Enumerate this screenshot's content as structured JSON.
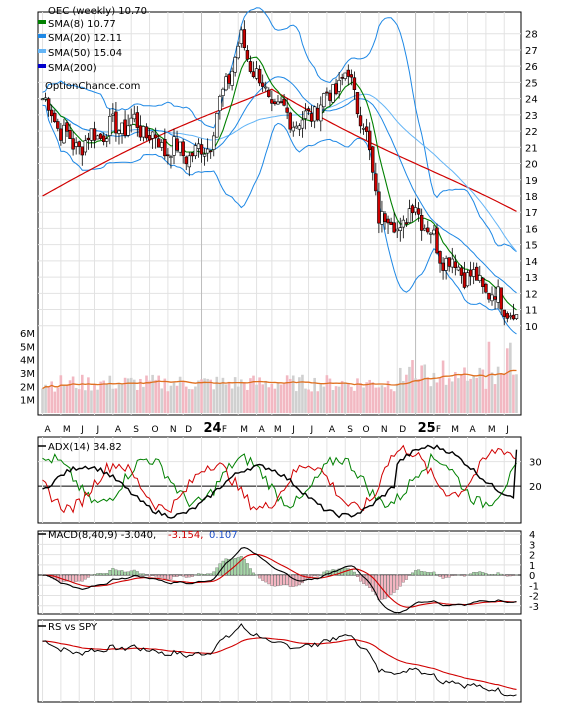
{
  "chart_data": {
    "type": "stock",
    "panels": {
      "price": {
        "legend": {
          "title": "OEC (weekly) 10.70",
          "entries": [
            {
              "key": "sma8",
              "label": "SMA(8) 10.77",
              "color": "#008000"
            },
            {
              "key": "sma20",
              "label": "SMA(20) 12.11",
              "color": "#1e88e5"
            },
            {
              "key": "sma50",
              "label": "SMA(50) 15.04",
              "color": "#64b5f6"
            },
            {
              "key": "sma200",
              "label": "SMA(200)",
              "color": "#0000cc"
            }
          ],
          "watermark": "OptionChance.com"
        },
        "y_ticks": [
          10,
          11,
          12,
          13,
          14,
          15,
          16,
          17,
          18,
          19,
          20,
          21,
          22,
          23,
          24,
          25,
          26,
          27,
          28
        ],
        "ylim": [
          9.0,
          28.6
        ],
        "volume_ticks": [
          "1M",
          "2M",
          "3M",
          "4M",
          "5M",
          "6M"
        ],
        "volume_max": 7.2
      },
      "adx": {
        "label": "ADX(14) 34.82",
        "y_ticks": [
          "20",
          "30"
        ]
      },
      "macd": {
        "label": "MACD(8,40,9) -3.040,",
        "value2": "-3.154,",
        "value3": "0.107",
        "y_ticks": [
          "-3",
          "-2",
          "-1",
          "0",
          "1",
          "2",
          "3",
          "4"
        ]
      },
      "rs": {
        "label": "RS vs SPY"
      }
    },
    "x_labels": [
      "A",
      "M",
      "J",
      "J",
      "A",
      "S",
      "O",
      "N",
      "D",
      "24",
      "F",
      "M",
      "A",
      "M",
      "J",
      "J",
      "A",
      "S",
      "O",
      "N",
      "D",
      "25",
      "F",
      "M",
      "A",
      "M",
      "J"
    ],
    "key_points": {
      "x": [
        0,
        10,
        20,
        30,
        40,
        50,
        55,
        60,
        65,
        75,
        85,
        95,
        100,
        105,
        110,
        117,
        122,
        130,
        140,
        150,
        155
      ],
      "close": [
        24.0,
        21.0,
        22.0,
        22.5,
        21.0,
        20.5,
        21.5,
        25.0,
        27.5,
        23.5,
        22.5,
        24.5,
        25.5,
        22.5,
        17.0,
        16.0,
        17.5,
        14.5,
        13.0,
        11.5,
        10.7
      ]
    },
    "last_values": {
      "close": 10.7,
      "sma8": 10.77,
      "sma20": 12.11,
      "sma50": 15.04,
      "adx": 34.82,
      "macd": -3.04
    }
  }
}
